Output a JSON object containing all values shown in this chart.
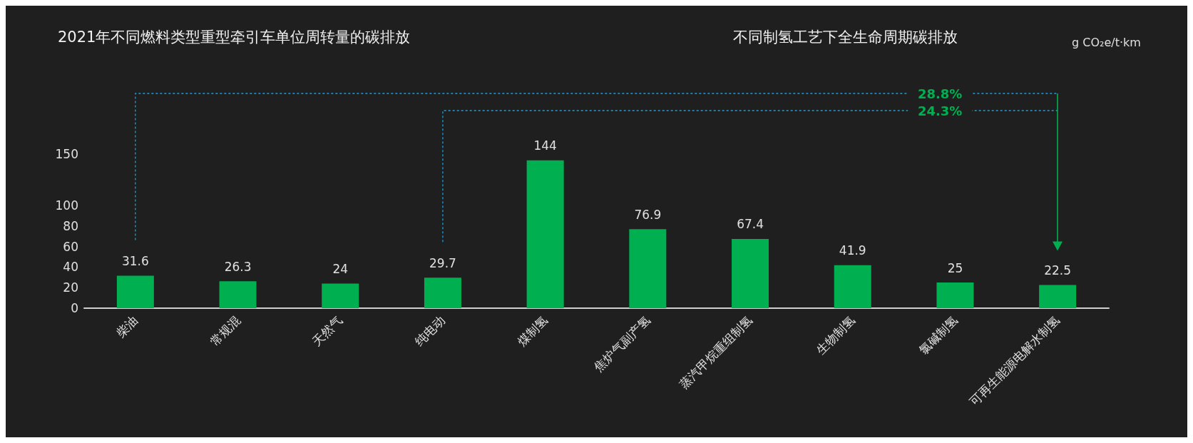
{
  "chart_data": {
    "type": "bar",
    "title": "2021年不同燃料类型重型牵引车单位周转量的碳排放",
    "subtitle": "不同制氢工艺下全生命周期碳排放",
    "categories": [
      "柴油",
      "常规混",
      "天然气",
      "纯电动",
      "煤制氢",
      "焦炉气副产氢",
      "蒸汽甲烷重组制氢",
      "生物制氢",
      "氯碱制氢",
      "可再生能源电解水制氢"
    ],
    "values": [
      31.6,
      26.3,
      24,
      29.7,
      144,
      76.9,
      67.4,
      41.9,
      25,
      22.5
    ],
    "color": "#00b050",
    "ylim": [
      0,
      150
    ],
    "yticks": [
      0,
      20,
      40,
      60,
      80,
      100,
      150
    ],
    "data_labels": true,
    "grid": false,
    "annotations": [
      "28.8%",
      "24.3%",
      "g CO₂e/t·km"
    ]
  }
}
